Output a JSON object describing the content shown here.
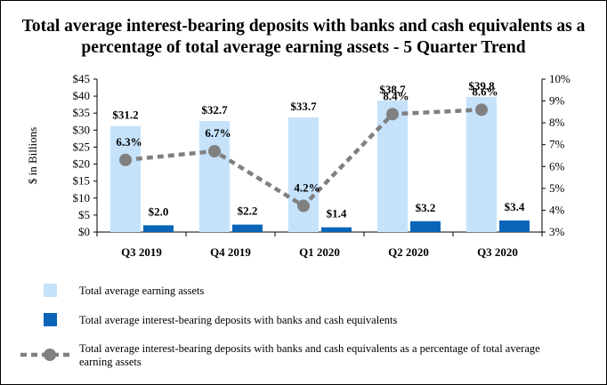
{
  "chart_data": {
    "type": "bar+line",
    "title_lines": [
      "Total average interest-bearing deposits with banks and cash equivalents as a",
      "percentage of total average earning assets - 5 Quarter Trend"
    ],
    "categories": [
      "Q3 2019",
      "Q4 2019",
      "Q1 2020",
      "Q2 2020",
      "Q3 2020"
    ],
    "y_left": {
      "label": "$ in Billions",
      "range": [
        0,
        45
      ],
      "ticks": [
        "$0",
        "$5",
        "$10",
        "$15",
        "$20",
        "$25",
        "$30",
        "$35",
        "$40",
        "$45"
      ]
    },
    "y_right": {
      "range": [
        3,
        10
      ],
      "ticks": [
        "3%",
        "4%",
        "5%",
        "6%",
        "7%",
        "8%",
        "9%",
        "10%"
      ]
    },
    "series": [
      {
        "name": "Total average earning assets",
        "type": "bar",
        "axis": "left",
        "color": "#C5E2FA",
        "values": [
          31.2,
          32.7,
          33.7,
          38.7,
          39.8
        ],
        "labels": [
          "$31.2",
          "$32.7",
          "$33.7",
          "$38.7",
          "$39.8"
        ]
      },
      {
        "name": "Total average interest-bearing deposits with banks and cash equivalents",
        "type": "bar",
        "axis": "left",
        "color": "#0A65B8",
        "values": [
          2.0,
          2.2,
          1.4,
          3.2,
          3.4
        ],
        "labels": [
          "$2.0",
          "$2.2",
          "$1.4",
          "$3.2",
          "$3.4"
        ]
      },
      {
        "name": "Total average interest-bearing deposits with banks and cash equivalents as a percentage of total average earning assets",
        "type": "line",
        "axis": "right",
        "style": "dashed",
        "color": "#808080",
        "values": [
          6.3,
          6.7,
          4.2,
          8.4,
          8.6
        ],
        "labels": [
          "6.3%",
          "6.7%",
          "4.2%",
          "8.4%",
          "8.6%"
        ]
      }
    ],
    "legend": {
      "placement": "bottom",
      "items": [
        "Total average earning assets",
        "Total average interest-bearing deposits with banks and cash equivalents",
        "Total average interest-bearing deposits with banks and cash equivalents as a percentage of total average",
        "earning assets"
      ]
    }
  }
}
